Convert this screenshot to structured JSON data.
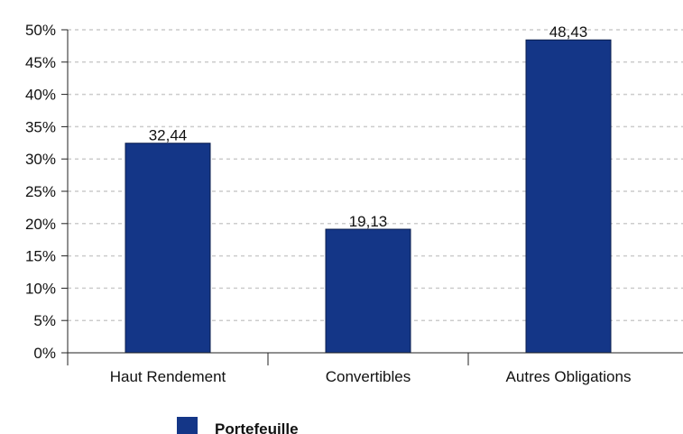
{
  "chart_data": {
    "type": "bar",
    "categories": [
      "Haut Rendement",
      "Convertibles",
      "Autres Obligations"
    ],
    "series": [
      {
        "name": "Portefeuille",
        "values": [
          32.44,
          19.13,
          48.43
        ],
        "value_labels": [
          "32,44",
          "19,13",
          "48,43"
        ],
        "color": "#143687"
      }
    ],
    "ylim": [
      0,
      50
    ],
    "yticks": [
      0,
      5,
      10,
      15,
      20,
      25,
      30,
      35,
      40,
      45,
      50
    ],
    "ytick_labels": [
      "0%",
      "5%",
      "10%",
      "15%",
      "20%",
      "25%",
      "30%",
      "35%",
      "40%",
      "45%",
      "50%"
    ],
    "grid": true,
    "legend_position": "bottom"
  },
  "colors": {
    "bar": "#143687",
    "bar_border": "#0a1d4d",
    "grid": "#cccccc",
    "axis": "#222222"
  }
}
